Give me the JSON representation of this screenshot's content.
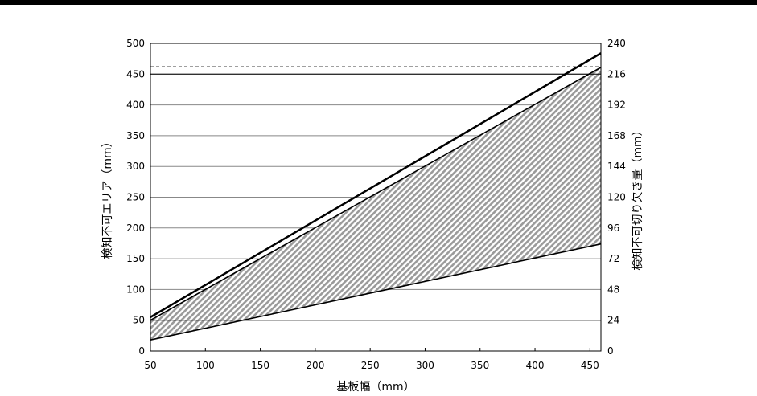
{
  "chart_data": {
    "type": "area",
    "xlabel": "基板幅（mm）",
    "ylabel": "検知不可エリア（mm）",
    "y2label": "検知不可切り欠き量（mm）",
    "xlim": [
      50,
      460
    ],
    "ylim": [
      0,
      500
    ],
    "y2lim": [
      0,
      240
    ],
    "xticks": [
      50,
      100,
      150,
      200,
      250,
      300,
      350,
      400,
      450
    ],
    "yticks": [
      0,
      50,
      100,
      150,
      200,
      250,
      300,
      350,
      400,
      450,
      500
    ],
    "y2ticks": [
      0,
      24,
      48,
      72,
      96,
      120,
      144,
      168,
      192,
      216,
      240
    ],
    "grid": true,
    "series": [
      {
        "x": [
          50,
          460
        ],
        "values": [
          55,
          484
        ],
        "style": "thick-line"
      },
      {
        "x": [
          50,
          460
        ],
        "values": [
          50,
          461
        ],
        "style": "line"
      },
      {
        "x": [
          50,
          460
        ],
        "values": [
          18,
          174
        ],
        "style": "line"
      }
    ],
    "shaded_region": {
      "between": "upper=series 2, lower=series 3",
      "pattern": "diagonal-hatch"
    },
    "reference_lines": [
      {
        "y": 462,
        "style": "dashed"
      },
      {
        "y": 450,
        "style": "solid"
      },
      {
        "y": 50,
        "style": "solid"
      }
    ]
  }
}
